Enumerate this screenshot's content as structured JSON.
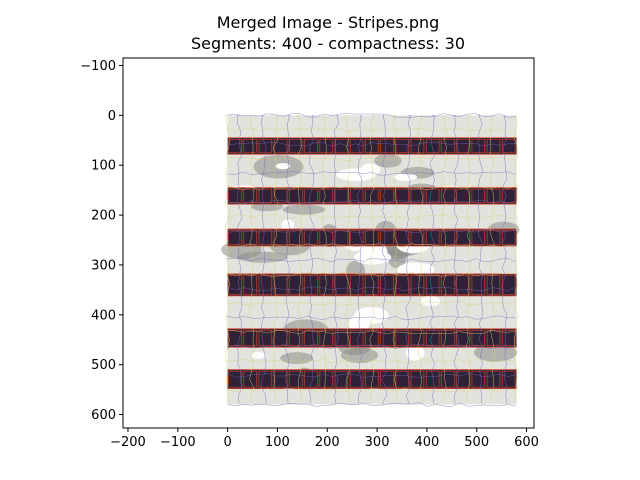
{
  "figure": {
    "title_line1": "Merged Image - Stripes.png",
    "title_line2": "Segments: 400 - compactness: 30"
  },
  "axes": {
    "xlim": [
      -210,
      615
    ],
    "ylim": [
      627,
      -115
    ],
    "x_ticks": [
      -200,
      -100,
      0,
      100,
      200,
      300,
      400,
      500,
      600
    ],
    "y_ticks": [
      -100,
      0,
      100,
      200,
      300,
      400,
      500,
      600
    ],
    "x_tick_labels": [
      "−200",
      "−100",
      "0",
      "100",
      "200",
      "300",
      "400",
      "500",
      "600"
    ],
    "y_tick_labels": [
      "−100",
      "0",
      "100",
      "200",
      "300",
      "400",
      "500",
      "600"
    ]
  },
  "image": {
    "extent_x": [
      0,
      580
    ],
    "extent_y": [
      0,
      580
    ],
    "colors": {
      "light_bg": "#e3e3de",
      "mid_gray": "#8a8a86",
      "dark_band": "#3a2c35",
      "band_border": "#d43a2a",
      "band_cell": "#2d2238",
      "slic_yellow": "#d7d06e",
      "slic_purple": "#7a68b8",
      "white_patch": "#ffffff"
    },
    "dark_bands": [
      {
        "y0": 45,
        "y1": 78
      },
      {
        "y0": 145,
        "y1": 178
      },
      {
        "y0": 228,
        "y1": 262
      },
      {
        "y0": 318,
        "y1": 362
      },
      {
        "y0": 428,
        "y1": 465
      },
      {
        "y0": 510,
        "y1": 548
      }
    ]
  }
}
